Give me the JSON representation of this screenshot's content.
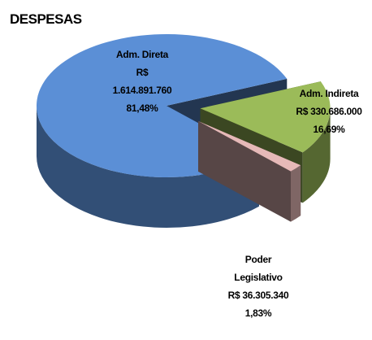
{
  "chart_data": {
    "type": "pie",
    "title": "DESPESAS",
    "categories": [
      "Adm. Direta",
      "Adm. Indireta",
      "Poder Legislativo"
    ],
    "values": [
      81.48,
      16.69,
      1.83
    ],
    "value_labels": [
      "81,48%",
      "16,69%",
      "1,83%"
    ],
    "amounts": [
      1614891760,
      330686000,
      36305340
    ],
    "amount_labels": [
      "R$ 1.614.891.760",
      "R$ 330.686.000",
      "R$ 36.305.340"
    ],
    "colors": [
      "#5b8fd6",
      "#9bbb59",
      "#e6b9b8"
    ]
  }
}
